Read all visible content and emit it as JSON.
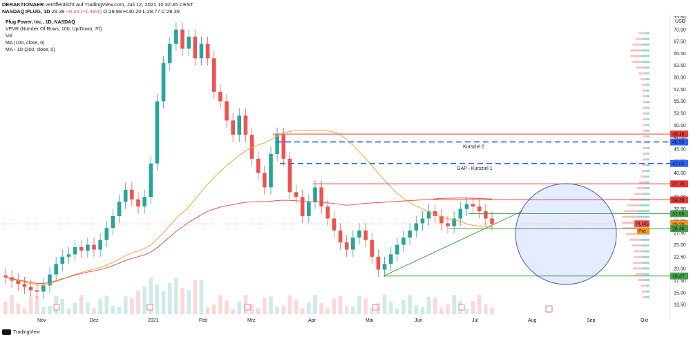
{
  "header": {
    "author": "DERAKTIONAER",
    "published": "veröffentlicht auf TradingView.com, Juli 12, 2021 10:32:45 CEST",
    "symbol": "NASDAQ:PLUG, 1D",
    "last": "29.39",
    "change": "−0.44 (−1.48%)",
    "ohlc": {
      "o": "O:29.99",
      "h": "H:30.20",
      "l": "L:28.77",
      "c": "C:29.39"
    }
  },
  "legend": {
    "title": "Plug Power, Inc., 1D, NASDAQ",
    "vpvr": "VPVR (Number Of Rows, 100, Up/Down, 70)",
    "vol": "Vol",
    "ma100": "MA (100, close, 0)",
    "ma200": "MA - 1D (200, close, 0)"
  },
  "colors": {
    "up": "#26a69a",
    "down": "#ef5350",
    "ma100": "#f3a53a",
    "ma200": "#e0574d",
    "target": "#2962ff",
    "resistance": "#e53935",
    "support": "#43a047"
  },
  "annotations": {
    "kursziel2": "Kursziel 2",
    "gap": "GAP - Kursziel 1"
  },
  "price_tags": [
    "48.16",
    "46.50",
    "42.00",
    "37.75",
    "34.38",
    "31.50",
    "29.39",
    "29.29",
    "28.40",
    "18.47"
  ],
  "badges": {
    "plug": "PLUG",
    "pre": "Pre"
  },
  "currency": "USD",
  "footer": {
    "brand": "TradingView"
  },
  "chart_data": {
    "type": "candlestick",
    "title": "Plug Power, Inc., 1D, NASDAQ",
    "y_ticks": [
      12.5,
      15.0,
      17.5,
      20.0,
      22.5,
      25.0,
      27.5,
      30.0,
      32.5,
      35.0,
      37.5,
      40.0,
      42.5,
      45.0,
      47.5,
      50.0,
      52.5,
      55.0,
      57.5,
      60.0,
      62.5,
      65.0,
      67.5,
      70.0,
      72.5
    ],
    "ylim": [
      10.5,
      73.0
    ],
    "x_labels": [
      "Nov",
      "Dez",
      "2021",
      "Feb",
      "Mrz",
      "Apr",
      "Mai",
      "Jun",
      "Jul",
      "Aug",
      "Sep",
      "Okt"
    ],
    "close_series": [
      [
        "Okt",
        18.2
      ],
      [
        "Okt",
        17.5
      ],
      [
        "Okt",
        16.8
      ],
      [
        "Okt",
        16.2
      ],
      [
        "Okt",
        15.5
      ],
      [
        "Nov",
        15.2
      ],
      [
        "Nov",
        16.5
      ],
      [
        "Nov",
        18.8
      ],
      [
        "Nov",
        21.0
      ],
      [
        "Nov",
        22.5
      ],
      [
        "Nov",
        23.0
      ],
      [
        "Nov",
        24.5
      ],
      [
        "Nov",
        23.8
      ],
      [
        "Dez",
        25.0
      ],
      [
        "Dez",
        24.0
      ],
      [
        "Dez",
        26.0
      ],
      [
        "Dez",
        28.5
      ],
      [
        "Dez",
        31.0
      ],
      [
        "Dez",
        34.0
      ],
      [
        "Dez",
        36.5
      ],
      [
        "Dez",
        34.5
      ],
      [
        "Dez",
        33.0
      ],
      [
        "2021",
        35.0
      ],
      [
        "2021",
        42.0
      ],
      [
        "2021",
        55.0
      ],
      [
        "2021",
        63.0
      ],
      [
        "2021",
        67.0
      ],
      [
        "2021",
        70.0
      ],
      [
        "Feb",
        66.0
      ],
      [
        "Feb",
        68.5
      ],
      [
        "Feb",
        64.0
      ],
      [
        "Feb",
        67.0
      ],
      [
        "Feb",
        64.0
      ],
      [
        "Feb",
        57.0
      ],
      [
        "Feb",
        55.0
      ],
      [
        "Feb",
        51.0
      ],
      [
        "Mrz",
        48.0
      ],
      [
        "Mrz",
        52.0
      ],
      [
        "Mrz",
        48.0
      ],
      [
        "Mrz",
        43.0
      ],
      [
        "Mrz",
        40.0
      ],
      [
        "Mrz",
        37.0
      ],
      [
        "Mrz",
        44.0
      ],
      [
        "Mrz",
        48.0
      ],
      [
        "Mrz",
        43.0
      ],
      [
        "Apr",
        36.0
      ],
      [
        "Apr",
        35.0
      ],
      [
        "Apr",
        31.0
      ],
      [
        "Apr",
        34.0
      ],
      [
        "Apr",
        37.0
      ],
      [
        "Apr",
        33.0
      ],
      [
        "Apr",
        30.5
      ],
      [
        "Apr",
        28.0
      ],
      [
        "Apr",
        25.5
      ],
      [
        "Apr",
        24.0
      ],
      [
        "Mai",
        26.5
      ],
      [
        "Mai",
        28.0
      ],
      [
        "Mai",
        26.0
      ],
      [
        "Mai",
        22.5
      ],
      [
        "Mai",
        19.8
      ],
      [
        "Mai",
        21.0
      ],
      [
        "Mai",
        23.0
      ],
      [
        "Mai",
        25.0
      ],
      [
        "Mai",
        26.5
      ],
      [
        "Jun",
        28.0
      ],
      [
        "Jun",
        29.5
      ],
      [
        "Jun",
        30.5
      ],
      [
        "Jun",
        32.0
      ],
      [
        "Jun",
        31.0
      ],
      [
        "Jun",
        29.5
      ],
      [
        "Jun",
        28.9
      ],
      [
        "Jun",
        30.5
      ],
      [
        "Jun",
        32.5
      ],
      [
        "Jul",
        33.5
      ],
      [
        "Jul",
        33.0
      ],
      [
        "Jul",
        32.0
      ],
      [
        "Jul",
        30.5
      ],
      [
        "Jul",
        29.39
      ]
    ],
    "levels": {
      "resistance": [
        48.16,
        37.75,
        34.38
      ],
      "support": [
        31.5,
        28.4,
        18.47
      ],
      "targets": [
        46.5,
        42.0
      ]
    }
  }
}
